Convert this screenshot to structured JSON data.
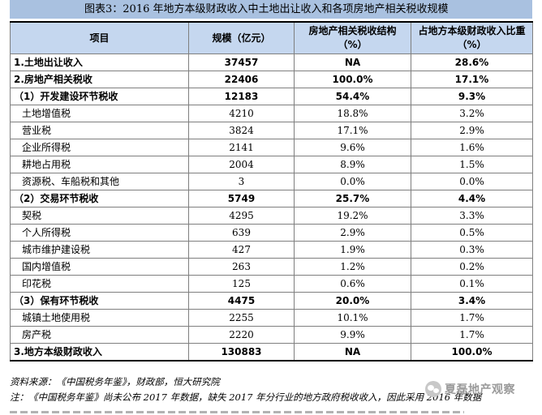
{
  "title": "图表3：2016 年地方本级财政收入中土地出让收入和各项房地产相关税收规模",
  "table": {
    "headers": [
      "项目",
      "规模（亿元）",
      "房地产相关税收结构（%）",
      "占地方本级财政收入比重（%）"
    ],
    "rows": [
      {
        "item": "1.土地出让收入",
        "scale": "37457",
        "structure": "NA",
        "share": "28.6%",
        "style": "bold"
      },
      {
        "item": "2.房地产相关税收",
        "scale": "22406",
        "structure": "100.0%",
        "share": "17.1%",
        "style": "bold"
      },
      {
        "item": "（1）开发建设环节税收",
        "scale": "12183",
        "structure": "54.4%",
        "share": "9.3%",
        "style": "bold"
      },
      {
        "item": "土地增值税",
        "scale": "4210",
        "structure": "18.8%",
        "share": "3.2%",
        "style": "sub"
      },
      {
        "item": "营业税",
        "scale": "3824",
        "structure": "17.1%",
        "share": "2.9%",
        "style": "sub"
      },
      {
        "item": "企业所得税",
        "scale": "2141",
        "structure": "9.6%",
        "share": "1.6%",
        "style": "sub"
      },
      {
        "item": "耕地占用税",
        "scale": "2004",
        "structure": "8.9%",
        "share": "1.5%",
        "style": "sub"
      },
      {
        "item": "资源税、车船税和其他",
        "scale": "3",
        "structure": "0.0%",
        "share": "0.0%",
        "style": "sub"
      },
      {
        "item": "（2）交易环节税收",
        "scale": "5749",
        "structure": "25.7%",
        "share": "4.4%",
        "style": "bold"
      },
      {
        "item": "契税",
        "scale": "4295",
        "structure": "19.2%",
        "share": "3.3%",
        "style": "sub"
      },
      {
        "item": "个人所得税",
        "scale": "639",
        "structure": "2.9%",
        "share": "0.5%",
        "style": "sub"
      },
      {
        "item": "城市维护建设税",
        "scale": "427",
        "structure": "1.9%",
        "share": "0.3%",
        "style": "sub"
      },
      {
        "item": "国内增值税",
        "scale": "263",
        "structure": "1.2%",
        "share": "0.2%",
        "style": "sub"
      },
      {
        "item": "印花税",
        "scale": "125",
        "structure": "0.6%",
        "share": "0.1%",
        "style": "sub"
      },
      {
        "item": "（3）保有环节税收",
        "scale": "4475",
        "structure": "20.0%",
        "share": "3.4%",
        "style": "bold"
      },
      {
        "item": "城镇土地使用税",
        "scale": "2255",
        "structure": "10.1%",
        "share": "1.7%",
        "style": "sub"
      },
      {
        "item": "房产税",
        "scale": "2220",
        "structure": "9.9%",
        "share": "1.7%",
        "style": "sub"
      },
      {
        "item": "3.地方本级财政收入",
        "scale": "130883",
        "structure": "NA",
        "share": "100.0%",
        "style": "bold"
      }
    ]
  },
  "notes": {
    "source": "资料来源：《中国税务年鉴》，财政部，恒大研究院",
    "note": "注：《中国税务年鉴》尚未公布 2017 年数据，缺失 2017 年分行业的地方政府税收收入，因此采用 2016 年数据"
  },
  "watermark": {
    "icon": "wechat-icon",
    "text": "夏磊地产观察"
  }
}
